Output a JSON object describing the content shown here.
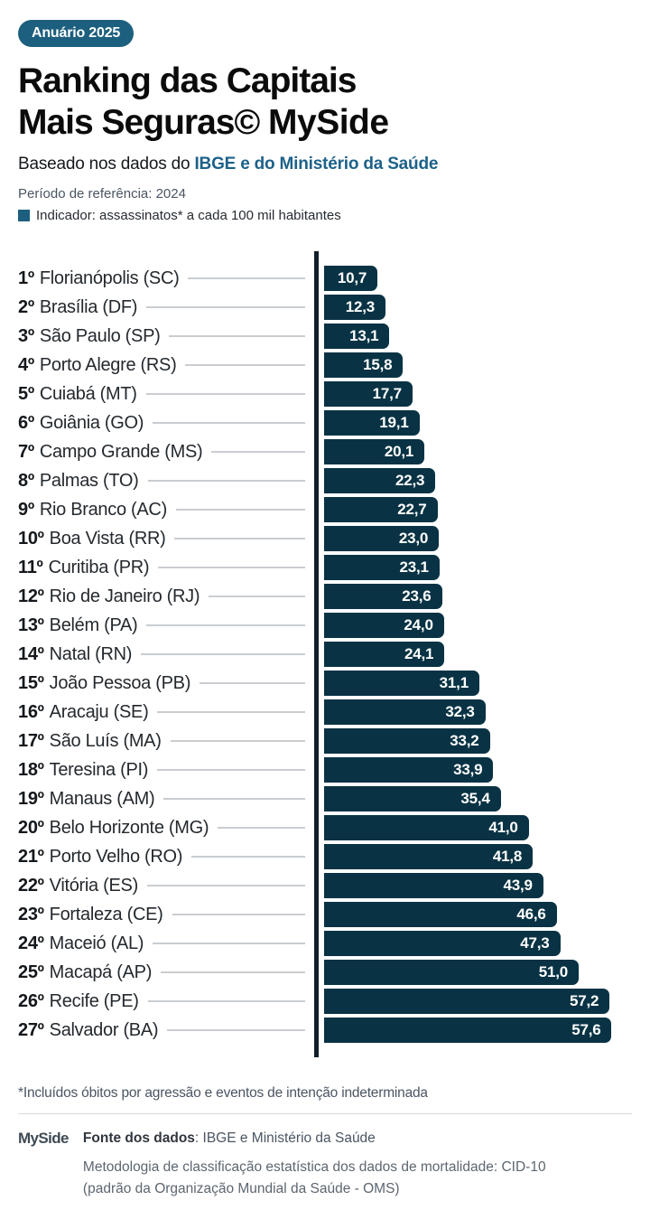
{
  "badge": "Anuário 2025",
  "header": {
    "title_line1": "Ranking das Capitais",
    "title_line2": "Mais Seguras©",
    "brand": "MySide",
    "subtitle_prefix": "Baseado nos dados do ",
    "subtitle_highlight": "IBGE e do Ministério da Saúde",
    "period": "Período de referência: 2024",
    "indicator": "Indicador: assassinatos* a cada 100 mil habitantes"
  },
  "chart_data": {
    "type": "bar",
    "orientation": "horizontal",
    "title": "Ranking das Capitais Mais Seguras",
    "indicator_label": "assassinatos a cada 100 mil habitantes",
    "value_format": "decimal-comma",
    "xlim": [
      0,
      57.6
    ],
    "max_value": 57.6,
    "rows": [
      {
        "rank": "1º",
        "city": "Florianópolis (SC)",
        "value": 10.7,
        "label": "10,7"
      },
      {
        "rank": "2º",
        "city": "Brasília (DF)",
        "value": 12.3,
        "label": "12,3"
      },
      {
        "rank": "3º",
        "city": "São Paulo (SP)",
        "value": 13.1,
        "label": "13,1"
      },
      {
        "rank": "4º",
        "city": "Porto Alegre (RS)",
        "value": 15.8,
        "label": "15,8"
      },
      {
        "rank": "5º",
        "city": "Cuiabá (MT)",
        "value": 17.7,
        "label": "17,7"
      },
      {
        "rank": "6º",
        "city": "Goiânia (GO)",
        "value": 19.1,
        "label": "19,1"
      },
      {
        "rank": "7º",
        "city": "Campo Grande (MS)",
        "value": 20.1,
        "label": "20,1"
      },
      {
        "rank": "8º",
        "city": "Palmas (TO)",
        "value": 22.3,
        "label": "22,3"
      },
      {
        "rank": "9º",
        "city": "Rio Branco (AC)",
        "value": 22.7,
        "label": "22,7"
      },
      {
        "rank": "10º",
        "city": "Boa Vista (RR)",
        "value": 23.0,
        "label": "23,0"
      },
      {
        "rank": "11º",
        "city": "Curitiba (PR)",
        "value": 23.1,
        "label": "23,1"
      },
      {
        "rank": "12º",
        "city": "Rio de Janeiro (RJ)",
        "value": 23.6,
        "label": "23,6"
      },
      {
        "rank": "13º",
        "city": "Belém (PA)",
        "value": 24.0,
        "label": "24,0"
      },
      {
        "rank": "14º",
        "city": "Natal (RN)",
        "value": 24.1,
        "label": "24,1"
      },
      {
        "rank": "15º",
        "city": "João Pessoa (PB)",
        "value": 31.1,
        "label": "31,1"
      },
      {
        "rank": "16º",
        "city": "Aracaju (SE)",
        "value": 32.3,
        "label": "32,3"
      },
      {
        "rank": "17º",
        "city": "São Luís (MA)",
        "value": 33.2,
        "label": "33,2"
      },
      {
        "rank": "18º",
        "city": "Teresina (PI)",
        "value": 33.9,
        "label": "33,9"
      },
      {
        "rank": "19º",
        "city": "Manaus (AM)",
        "value": 35.4,
        "label": "35,4"
      },
      {
        "rank": "20º",
        "city": "Belo Horizonte (MG)",
        "value": 41.0,
        "label": "41,0"
      },
      {
        "rank": "21º",
        "city": "Porto Velho (RO)",
        "value": 41.8,
        "label": "41,8"
      },
      {
        "rank": "22º",
        "city": "Vitória (ES)",
        "value": 43.9,
        "label": "43,9"
      },
      {
        "rank": "23º",
        "city": "Fortaleza (CE)",
        "value": 46.6,
        "label": "46,6"
      },
      {
        "rank": "24º",
        "city": "Maceió (AL)",
        "value": 47.3,
        "label": "47,3"
      },
      {
        "rank": "25º",
        "city": "Macapá (AP)",
        "value": 51.0,
        "label": "51,0"
      },
      {
        "rank": "26º",
        "city": "Recife (PE)",
        "value": 57.2,
        "label": "57,2"
      },
      {
        "rank": "27º",
        "city": "Salvador (BA)",
        "value": 57.6,
        "label": "57,6"
      }
    ]
  },
  "footnote": "*Incluídos óbitos por agressão e eventos de intenção indeterminada",
  "footer": {
    "logo": "MySide",
    "source_label": "Fonte dos dados",
    "source_rest": ": IBGE e Ministério da Saúde",
    "methodology_line1": "Metodologia de classificação estatística dos dados de mortalidade: CID-10",
    "methodology_line2": "(padrão da Organização Mundial da Saúde - OMS)"
  },
  "colors": {
    "accent_teal": "#1d5f7e",
    "highlight_text": "#1d6189",
    "bar_fill": "#093344",
    "axis_line": "#111f2a",
    "leader_line": "#c9cdd1",
    "value_text": "#ffffff",
    "muted_text": "#4b5563"
  }
}
